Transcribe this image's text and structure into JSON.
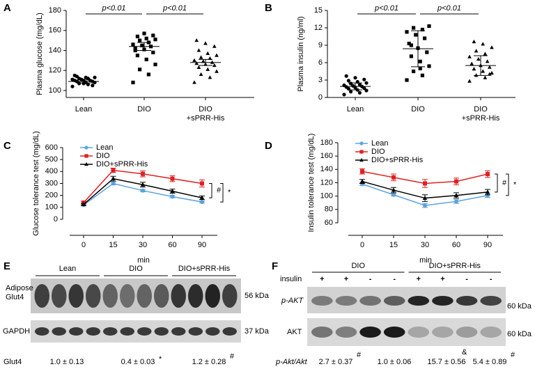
{
  "chart_data": [
    {
      "type": "dot",
      "panel": "A",
      "y_label": "Plasma glucose (mg/dL)",
      "categories": [
        "Lean",
        "DIO",
        "DIO\n+sPRR-His"
      ],
      "markers": [
        "circle",
        "square",
        "triangle"
      ],
      "color": "#000000",
      "points": [
        [
          104,
          106,
          107,
          108,
          108,
          109,
          109,
          110,
          110,
          110,
          111,
          111,
          112,
          112,
          113,
          113,
          114,
          105,
          107,
          115
        ],
        [
          108,
          116,
          121,
          126,
          131,
          135,
          138,
          141,
          142,
          144,
          145,
          146,
          148,
          150,
          151,
          152,
          154,
          155,
          157,
          140
        ],
        [
          108,
          113,
          116,
          119,
          121,
          123,
          125,
          126,
          127,
          128,
          129,
          130,
          132,
          133,
          135,
          137,
          140,
          144,
          147,
          150
        ]
      ],
      "means": [
        109,
        144,
        128
      ],
      "errors": [
        1.5,
        4,
        3
      ],
      "ylim": [
        93,
        180
      ],
      "yticks": [
        100,
        120,
        140,
        160,
        180
      ],
      "annotations": [
        "p<0.01",
        "p<0.01"
      ]
    },
    {
      "type": "dot",
      "panel": "B",
      "y_label": "Plasma insulin (ng/ml)",
      "categories": [
        "Lean",
        "DIO",
        "DIO\n+sPRR-His"
      ],
      "markers": [
        "circle",
        "square",
        "triangle"
      ],
      "color": "#000000",
      "points": [
        [
          0.5,
          0.8,
          1.0,
          1.2,
          1.3,
          1.5,
          1.6,
          1.7,
          1.8,
          1.9,
          2.0,
          2.1,
          2.2,
          2.4,
          2.5,
          2.7,
          2.9,
          3.1,
          3.4,
          3.7
        ],
        [
          3.0,
          3.8,
          4.5,
          5.4,
          6.2,
          7.1,
          7.8,
          8.5,
          9.3,
          10.2,
          10.8,
          11.3,
          11.7,
          12.0,
          12.3,
          5.0,
          9.0
        ],
        [
          2.8,
          3.4,
          3.8,
          4.2,
          4.5,
          4.9,
          5.2,
          5.5,
          5.8,
          6.2,
          6.6,
          7.0,
          7.5,
          8.0,
          8.6,
          9.2,
          9.6,
          4.0
        ]
      ],
      "means": [
        1.9,
        8.4,
        5.5
      ],
      "errors": [
        0.6,
        3.1,
        1.7
      ],
      "ylim": [
        0,
        15
      ],
      "yticks": [
        0,
        3,
        6,
        9,
        12,
        15
      ],
      "annotations": [
        "p<0.01",
        "p<0.01"
      ]
    },
    {
      "type": "line",
      "panel": "C",
      "y_label": "Glucose tolerance test (mg/dL)",
      "x_label": "min",
      "categories": [
        "0",
        "15",
        "30",
        "60",
        "90"
      ],
      "series": [
        {
          "name": "Lean",
          "color": "#5ba3e0",
          "marker": "circle",
          "values": [
            120,
            300,
            240,
            190,
            145
          ],
          "errors": [
            8,
            12,
            10,
            10,
            8
          ]
        },
        {
          "name": "DIO",
          "color": "#e02020",
          "marker": "square",
          "values": [
            140,
            410,
            380,
            340,
            300
          ],
          "errors": [
            10,
            18,
            25,
            25,
            30
          ]
        },
        {
          "name": "DIO+sPRR-His",
          "color": "#000000",
          "marker": "triangle",
          "values": [
            125,
            340,
            290,
            235,
            180
          ],
          "errors": [
            8,
            20,
            20,
            18,
            15
          ]
        }
      ],
      "ylim": [
        0,
        600
      ],
      "yticks": [
        0,
        100,
        200,
        300,
        400,
        500,
        600
      ],
      "legend": "upper left",
      "annotations": [
        "#",
        "*"
      ]
    },
    {
      "type": "line",
      "panel": "D",
      "y_label": "Insulin tolerance test (mg/dL)",
      "x_label": "min",
      "categories": [
        "0",
        "15",
        "30",
        "60",
        "90"
      ],
      "series": [
        {
          "name": "Lean",
          "color": "#5ba3e0",
          "marker": "circle",
          "values": [
            118,
            102,
            86,
            92,
            101
          ],
          "errors": [
            2,
            2,
            3,
            3,
            3
          ]
        },
        {
          "name": "DIO",
          "color": "#e02020",
          "marker": "square",
          "values": [
            137,
            128,
            119,
            122,
            133
          ],
          "errors": [
            4,
            5,
            6,
            5,
            5
          ]
        },
        {
          "name": "DIO+sPRR-His",
          "color": "#000000",
          "marker": "triangle",
          "values": [
            122,
            109,
            97,
            101,
            106
          ],
          "errors": [
            3,
            4,
            5,
            4,
            4
          ]
        }
      ],
      "ylim": [
        60,
        180
      ],
      "yticks": [
        60,
        80,
        100,
        120,
        140,
        160,
        180
      ],
      "legend": "upper left",
      "annotations": [
        "#",
        "*"
      ]
    }
  ],
  "blot_e": {
    "panel": "E",
    "groups": [
      "Lean",
      "DIO",
      "DIO+sPRR-His"
    ],
    "rows": [
      {
        "label": "Adipose\nGlut4",
        "size": "56 kDa"
      },
      {
        "label": "GAPDH",
        "size": "37 kDa"
      }
    ],
    "quant_label": "Glut4",
    "quant": [
      {
        "text": "1.0 ± 0.13"
      },
      {
        "text": "0.4 ± 0.03",
        "mark": "*"
      },
      {
        "text": "1.2 ± 0.28",
        "mark": "#"
      }
    ]
  },
  "blot_f": {
    "panel": "F",
    "groups": [
      "DIO",
      "DIO+sPRR-His"
    ],
    "treatment_label": "insulin",
    "treatment": [
      "+",
      "+",
      "-",
      "-",
      "+",
      "+",
      "-",
      "-"
    ],
    "rows": [
      {
        "label": "p-AKT",
        "size": "60 kDa"
      },
      {
        "label": "AKT",
        "size": "60 kDa"
      }
    ],
    "quant_label": "p-Akt/Akt",
    "quant": [
      {
        "text": "2.7 ± 0.37",
        "mark": "#"
      },
      {
        "text": "1.0 ± 0.06"
      },
      {
        "text": "15.7 ± 0.56",
        "mark": "&"
      },
      {
        "text": "5.4 ± 0.89",
        "mark": "#"
      }
    ]
  }
}
